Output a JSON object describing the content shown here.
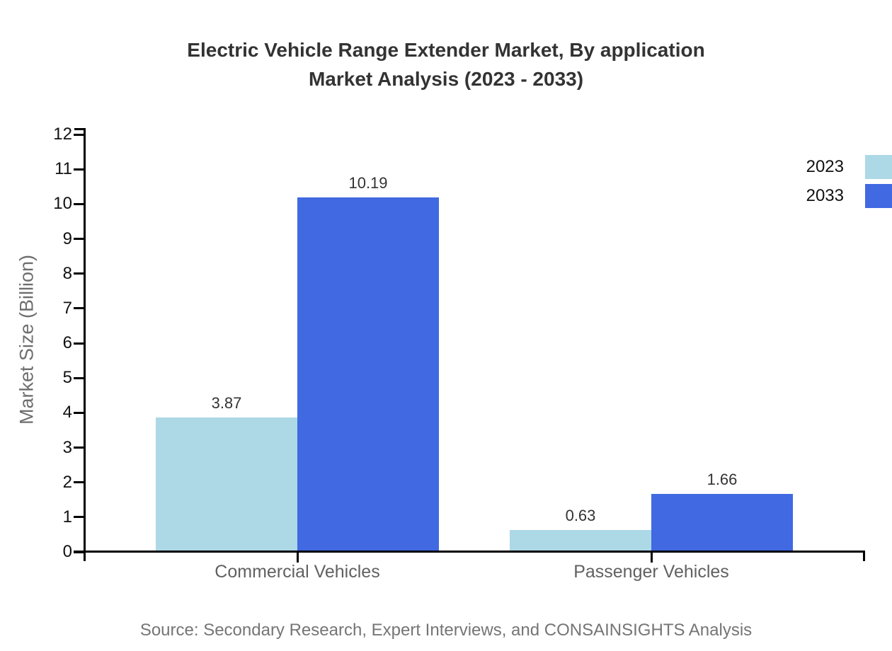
{
  "header": {
    "title_line1": "Electric Vehicle Range Extender Market, By application",
    "title_line2": "Market Analysis (2023 - 2033)"
  },
  "y_axis": {
    "title": "Market Size (Billion)"
  },
  "footer": {
    "source": "Source: Secondary Research, Expert Interviews, and CONSAINSIGHTS Analysis"
  },
  "colors": {
    "series_2023": "#ADD8E6",
    "series_2033": "#4169E1",
    "axis": "#000000",
    "title_text": "#333333",
    "tick_text": "#111111",
    "category_text": "#616161",
    "muted_text": "#757575"
  },
  "chart_data": {
    "type": "bar",
    "title": "Electric Vehicle Range Extender Market, By application Market Analysis (2023 - 2033)",
    "categories": [
      "Commercial Vehicles",
      "Passenger Vehicles"
    ],
    "series": [
      {
        "name": "2023",
        "color": "#ADD8E6",
        "values": [
          3.87,
          0.63
        ]
      },
      {
        "name": "2033",
        "color": "#4169E1",
        "values": [
          10.19,
          1.66
        ]
      }
    ],
    "value_labels": {
      "2023": [
        "3.87",
        "0.63"
      ],
      "2033": [
        "10.19",
        "1.66"
      ]
    },
    "xlabel": "",
    "ylabel": "Market Size (Billion)",
    "ylim": [
      0,
      12
    ],
    "ytick_step": 1,
    "grid": false,
    "legend_position": "top-right"
  }
}
